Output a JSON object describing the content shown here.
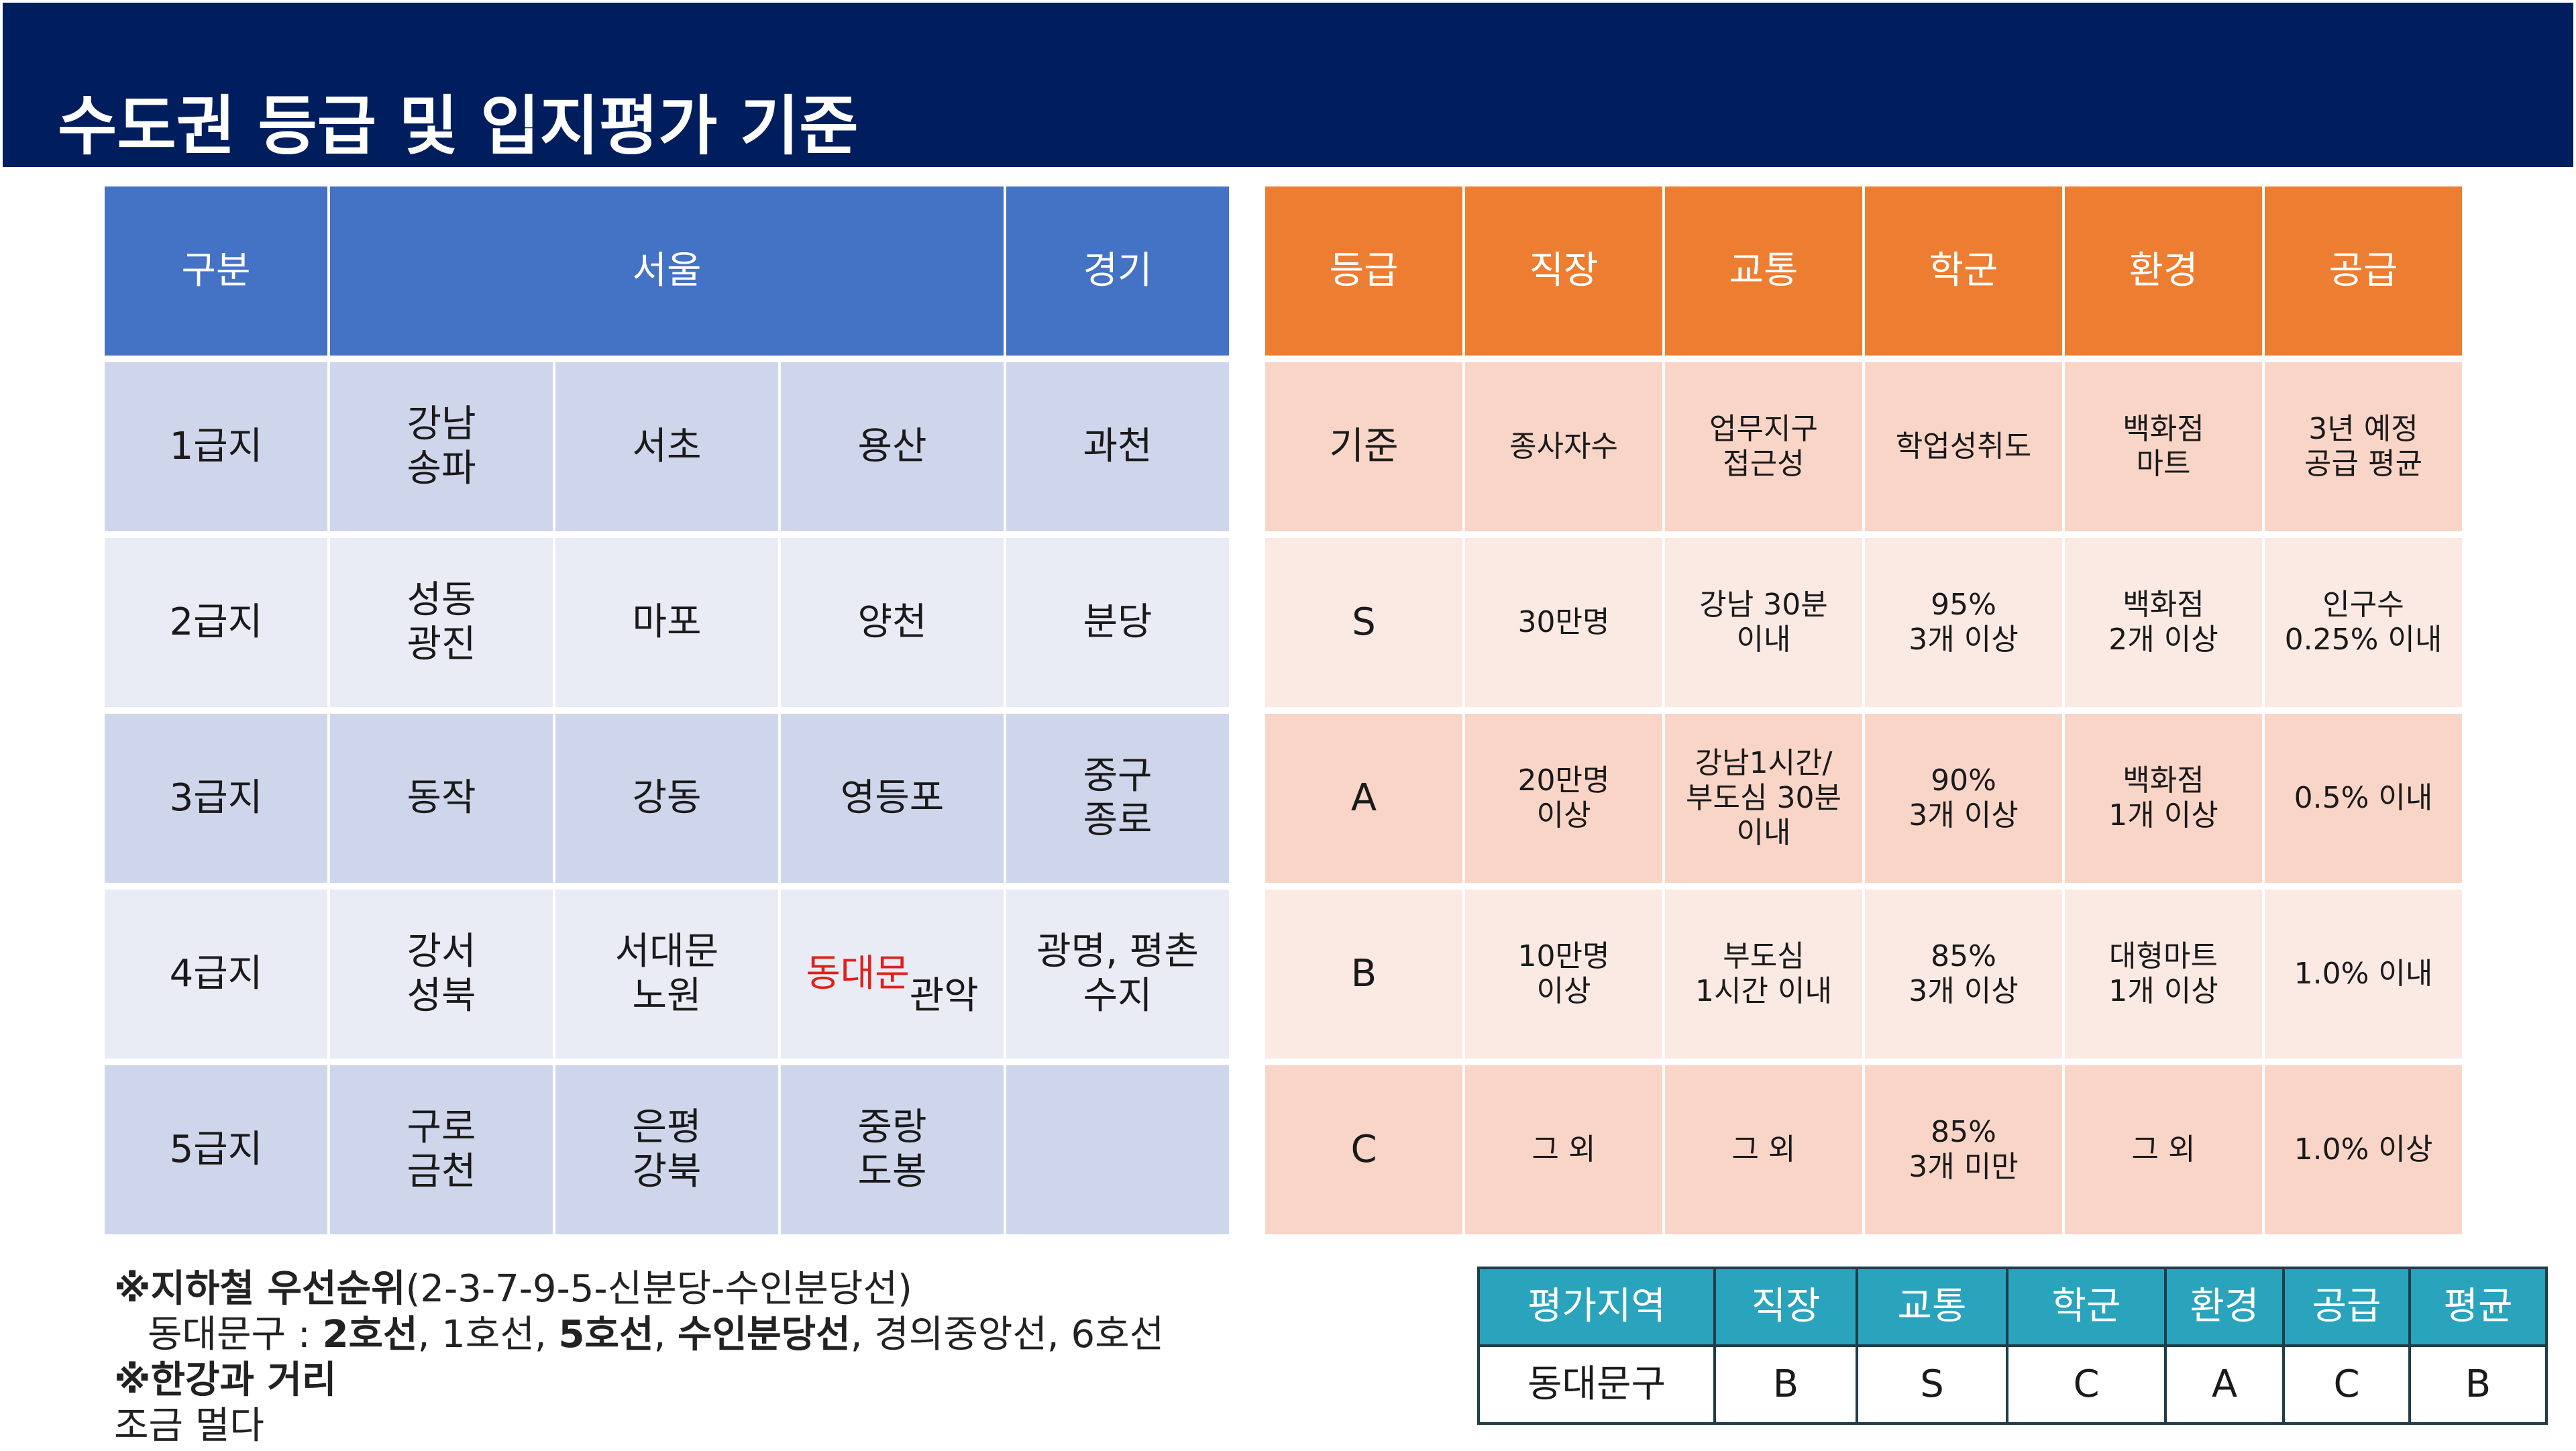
{
  "title": "수도권 등급 및 입지평가 기준",
  "grade_table": {
    "headers": {
      "category": "구분",
      "seoul": "서울",
      "gyeonggi": "경기"
    },
    "rows": [
      {
        "grade": "1급지",
        "seoul": [
          "강남\n송파",
          "서초",
          "용산"
        ],
        "gyeonggi": "과천"
      },
      {
        "grade": "2급지",
        "seoul": [
          "성동\n광진",
          "마포",
          "양천"
        ],
        "gyeonggi": "분당"
      },
      {
        "grade": "3급지",
        "seoul": [
          "동작",
          "강동",
          "영등포"
        ],
        "gyeonggi": "중구\n종로"
      },
      {
        "grade": "4급지",
        "seoul": [
          "강서\n성북",
          "서대문\n노원",
          "동대문\n관악"
        ],
        "gyeonggi": "광명, 평촌\n수지",
        "highlight": "동대문"
      },
      {
        "grade": "5급지",
        "seoul": [
          "구로\n금천",
          "은평\n강북",
          "중랑\n도봉"
        ],
        "gyeonggi": ""
      }
    ]
  },
  "criteria_table": {
    "headers": [
      "등급",
      "직장",
      "교통",
      "학군",
      "환경",
      "공급"
    ],
    "rows": [
      [
        "기준",
        "종사자수",
        "업무지구\n접근성",
        "학업성취도",
        "백화점\n마트",
        "3년 예정\n공급 평균"
      ],
      [
        "S",
        "30만명",
        "강남 30분\n이내",
        "95%\n3개 이상",
        "백화점\n2개 이상",
        "인구수\n0.25%  이내"
      ],
      [
        "A",
        "20만명\n이상",
        "강남1시간/\n부도심 30분\n이내",
        "90%\n3개 이상",
        "백화점\n1개 이상",
        "0.5%  이내"
      ],
      [
        "B",
        "10만명\n이상",
        "부도심\n1시간 이내",
        "85%\n3개 이상",
        "대형마트\n1개 이상",
        "1.0%  이내"
      ],
      [
        "C",
        "그 외",
        "그 외",
        "85%\n3개 미만",
        "그 외",
        "1.0%  이상"
      ]
    ]
  },
  "notes": {
    "subway_title": "※지하철 우선순위",
    "subway_order": "(2-3-7-9-5-신분당-수인분당선)",
    "district_prefix": "동대문구 : ",
    "lines": [
      {
        "text": "2호선",
        "bold": true
      },
      {
        "text": ", 1호선, ",
        "bold": false
      },
      {
        "text": "5호선",
        "bold": true
      },
      {
        "text": ", ",
        "bold": false
      },
      {
        "text": "수인분당선",
        "bold": true
      },
      {
        "text": ", 경의중앙선, 6호선",
        "bold": false
      }
    ],
    "river_title": "※한강과 거리",
    "river_value": "조금 멀다"
  },
  "summary_table": {
    "headers": [
      "평가지역",
      "직장",
      "교통",
      "학군",
      "환경",
      "공급",
      "평균"
    ],
    "values": [
      "동대문구",
      "B",
      "S",
      "C",
      "A",
      "C",
      "B"
    ]
  },
  "colors": {
    "header_bg": "#001e5e",
    "left_header": "#4472c4",
    "right_header": "#ed7d31",
    "summary_header": "#2aa3bd",
    "highlight_red": "#e0201b"
  }
}
